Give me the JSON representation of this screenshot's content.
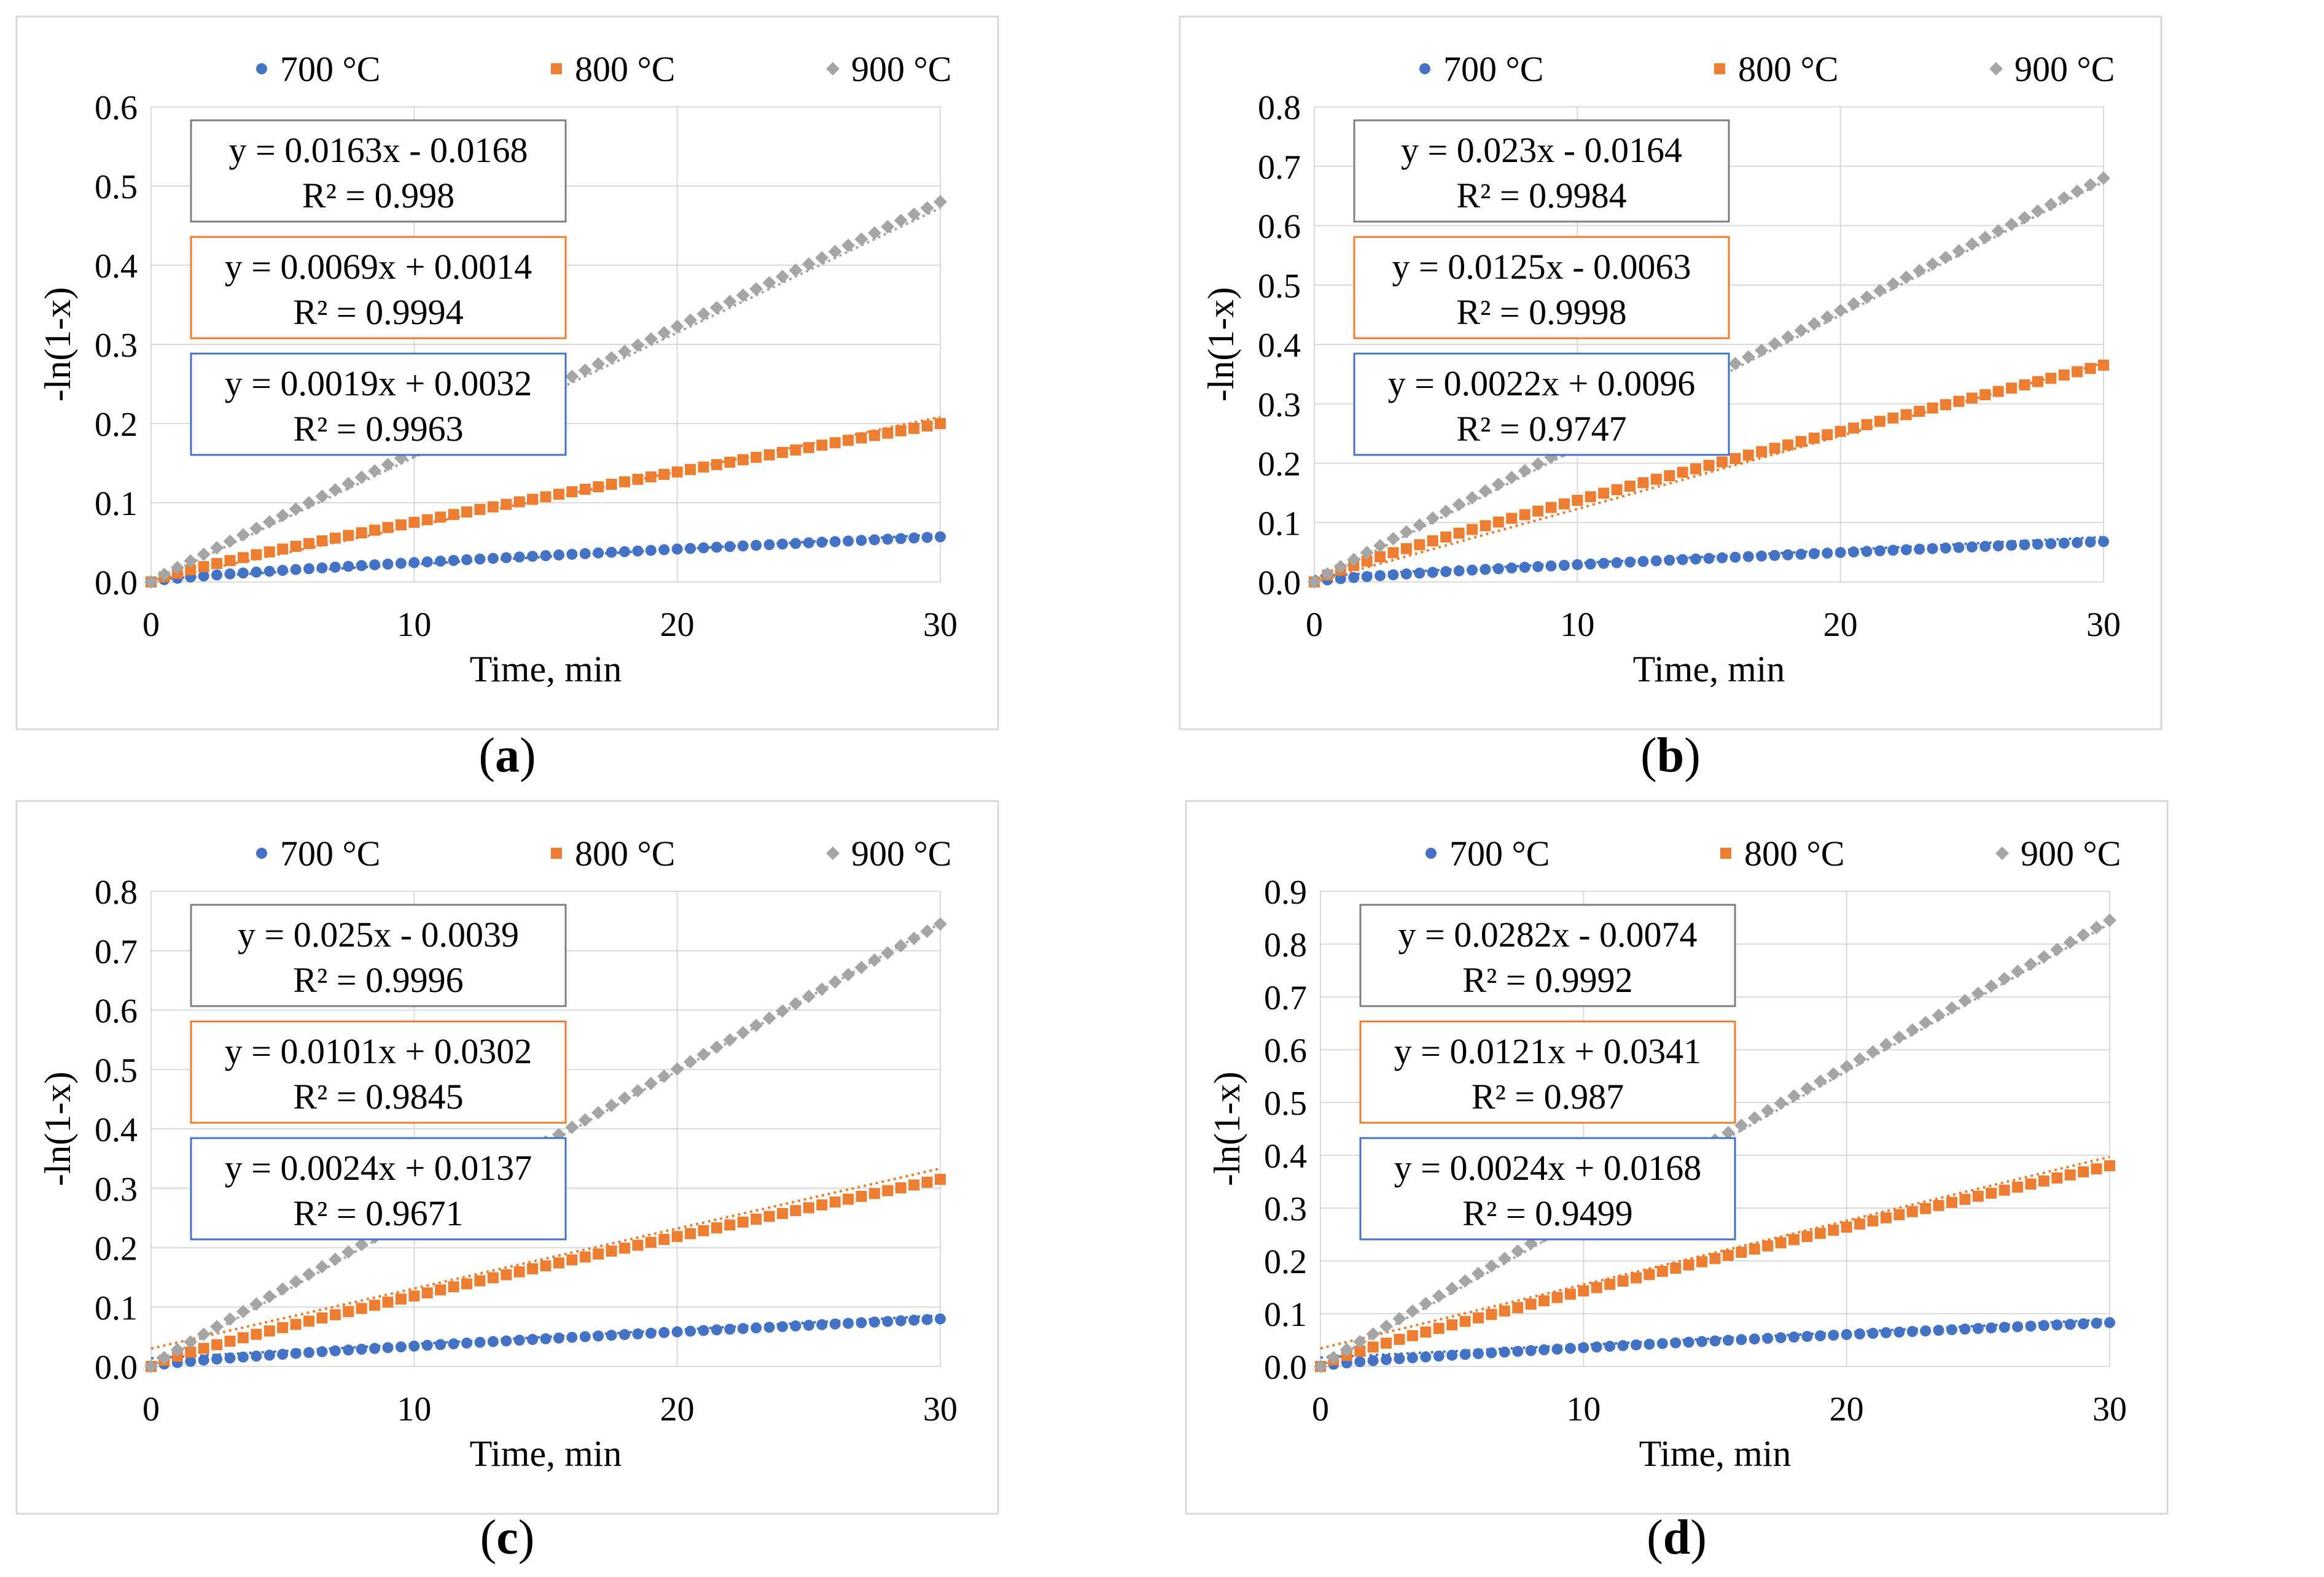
{
  "colors": {
    "s700": "#4472C4",
    "s800": "#ED7D31",
    "s900": "#A5A5A5",
    "grid": "#D9D9D9",
    "frame": "#D9D9D9",
    "text": "#000000"
  },
  "chart_data": [
    {
      "type": "scatter",
      "caption": "a",
      "xlabel": "Time, min",
      "ylabel": "-ln(1-x)",
      "xlim": [
        0,
        30
      ],
      "xticks": [
        "0",
        "10",
        "20",
        "30"
      ],
      "ylim": [
        0,
        0.6
      ],
      "yticks": [
        "0.0",
        "0.1",
        "0.2",
        "0.3",
        "0.4",
        "0.5",
        "0.6"
      ],
      "grid": true,
      "legend": "top",
      "series": [
        {
          "name": "700 °C",
          "marker": "circle",
          "slope": 0.0019,
          "intercept": 0.0032,
          "equation": "y = 0.0019x + 0.0032",
          "r2": "R² = 0.9963",
          "end_value": 0.057
        },
        {
          "name": "800 °C",
          "marker": "square",
          "slope": 0.0069,
          "intercept": 0.0014,
          "equation": "y = 0.0069x + 0.0014",
          "r2": "R² = 0.9994",
          "end_value": 0.2
        },
        {
          "name": "900 °C",
          "marker": "diamond",
          "slope": 0.0163,
          "intercept": -0.0168,
          "equation": "y = 0.0163x - 0.0168",
          "r2": "R² = 0.998",
          "end_value": 0.48
        }
      ]
    },
    {
      "type": "scatter",
      "caption": "b",
      "xlabel": "Time, min",
      "ylabel": "-ln(1-x)",
      "xlim": [
        0,
        30
      ],
      "xticks": [
        "0",
        "10",
        "20",
        "30"
      ],
      "ylim": [
        0,
        0.8
      ],
      "yticks": [
        "0.0",
        "0.1",
        "0.2",
        "0.3",
        "0.4",
        "0.5",
        "0.6",
        "0.7",
        "0.8"
      ],
      "grid": true,
      "legend": "top",
      "series": [
        {
          "name": "700 °C",
          "marker": "circle",
          "slope": 0.0022,
          "intercept": 0.0096,
          "equation": "y = 0.0022x + 0.0096",
          "r2": "R² = 0.9747",
          "end_value": 0.068
        },
        {
          "name": "800 °C",
          "marker": "square",
          "slope": 0.0125,
          "intercept": -0.0063,
          "equation": "y = 0.0125x - 0.0063",
          "r2": "R² = 0.9998",
          "end_value": 0.365
        },
        {
          "name": "900 °C",
          "marker": "diamond",
          "slope": 0.023,
          "intercept": -0.0164,
          "equation": "y = 0.023x - 0.0164",
          "r2": "R² = 0.9984",
          "end_value": 0.68
        }
      ]
    },
    {
      "type": "scatter",
      "caption": "c",
      "xlabel": "Time, min",
      "ylabel": "-ln(1-x)",
      "xlim": [
        0,
        30
      ],
      "xticks": [
        "0",
        "10",
        "20",
        "30"
      ],
      "ylim": [
        0,
        0.8
      ],
      "yticks": [
        "0.0",
        "0.1",
        "0.2",
        "0.3",
        "0.4",
        "0.5",
        "0.6",
        "0.7",
        "0.8"
      ],
      "grid": true,
      "legend": "top",
      "series": [
        {
          "name": "700 °C",
          "marker": "circle",
          "slope": 0.0024,
          "intercept": 0.0137,
          "equation": "y = 0.0024x + 0.0137",
          "r2": "R² = 0.9671",
          "end_value": 0.08
        },
        {
          "name": "800 °C",
          "marker": "square",
          "slope": 0.0101,
          "intercept": 0.0302,
          "equation": "y = 0.0101x + 0.0302",
          "r2": "R² = 0.9845",
          "end_value": 0.315
        },
        {
          "name": "900 °C",
          "marker": "diamond",
          "slope": 0.025,
          "intercept": -0.0039,
          "equation": "y = 0.025x - 0.0039",
          "r2": "R² = 0.9996",
          "end_value": 0.745
        }
      ]
    },
    {
      "type": "scatter",
      "caption": "d",
      "xlabel": "Time, min",
      "ylabel": "-ln(1-x)",
      "xlim": [
        0,
        30
      ],
      "xticks": [
        "0",
        "10",
        "20",
        "30"
      ],
      "ylim": [
        0,
        0.9
      ],
      "yticks": [
        "0.0",
        "0.1",
        "0.2",
        "0.3",
        "0.4",
        "0.5",
        "0.6",
        "0.7",
        "0.8",
        "0.9"
      ],
      "grid": true,
      "legend": "top",
      "series": [
        {
          "name": "700 °C",
          "marker": "circle",
          "slope": 0.0024,
          "intercept": 0.0168,
          "equation": "y = 0.0024x + 0.0168",
          "r2": "R² = 0.9499",
          "end_value": 0.083
        },
        {
          "name": "800 °C",
          "marker": "square",
          "slope": 0.0121,
          "intercept": 0.0341,
          "equation": "y = 0.0121x + 0.0341",
          "r2": "R² = 0.987",
          "end_value": 0.38
        },
        {
          "name": "900 °C",
          "marker": "diamond",
          "slope": 0.0282,
          "intercept": -0.0074,
          "equation": "y = 0.0282x - 0.0074",
          "r2": "R² = 0.9992",
          "end_value": 0.845
        }
      ]
    }
  ]
}
